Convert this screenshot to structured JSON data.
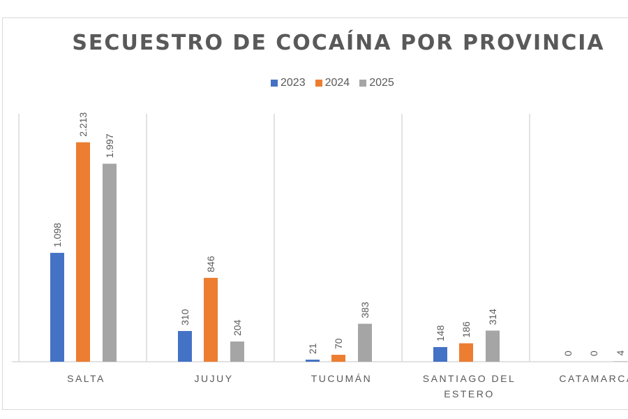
{
  "chart_data": {
    "type": "bar",
    "title": "SECUESTRO DE COCAÍNA POR PROVINCIA",
    "categories": [
      "SALTA",
      "JUJUY",
      "TUCUMÁN",
      "SANTIAGO DEL ESTERO",
      "CATAMARCA"
    ],
    "series": [
      {
        "name": "2023",
        "color": "#4472c4",
        "values": [
          1098,
          310,
          21,
          148,
          0
        ],
        "labels": [
          "1.098",
          "310",
          "21",
          "148",
          "0"
        ]
      },
      {
        "name": "2024",
        "color": "#ed7d31",
        "values": [
          2213,
          846,
          70,
          186,
          0
        ],
        "labels": [
          "2.213",
          "846",
          "70",
          "186",
          "0"
        ]
      },
      {
        "name": "2025",
        "color": "#a5a5a5",
        "values": [
          1997,
          204,
          383,
          314,
          4
        ],
        "labels": [
          "1.997",
          "204",
          "383",
          "314",
          "4"
        ]
      }
    ],
    "ylim": [
      0,
      2500
    ],
    "grid": false,
    "legend": "top",
    "data_labels": "rotated, above bars"
  }
}
